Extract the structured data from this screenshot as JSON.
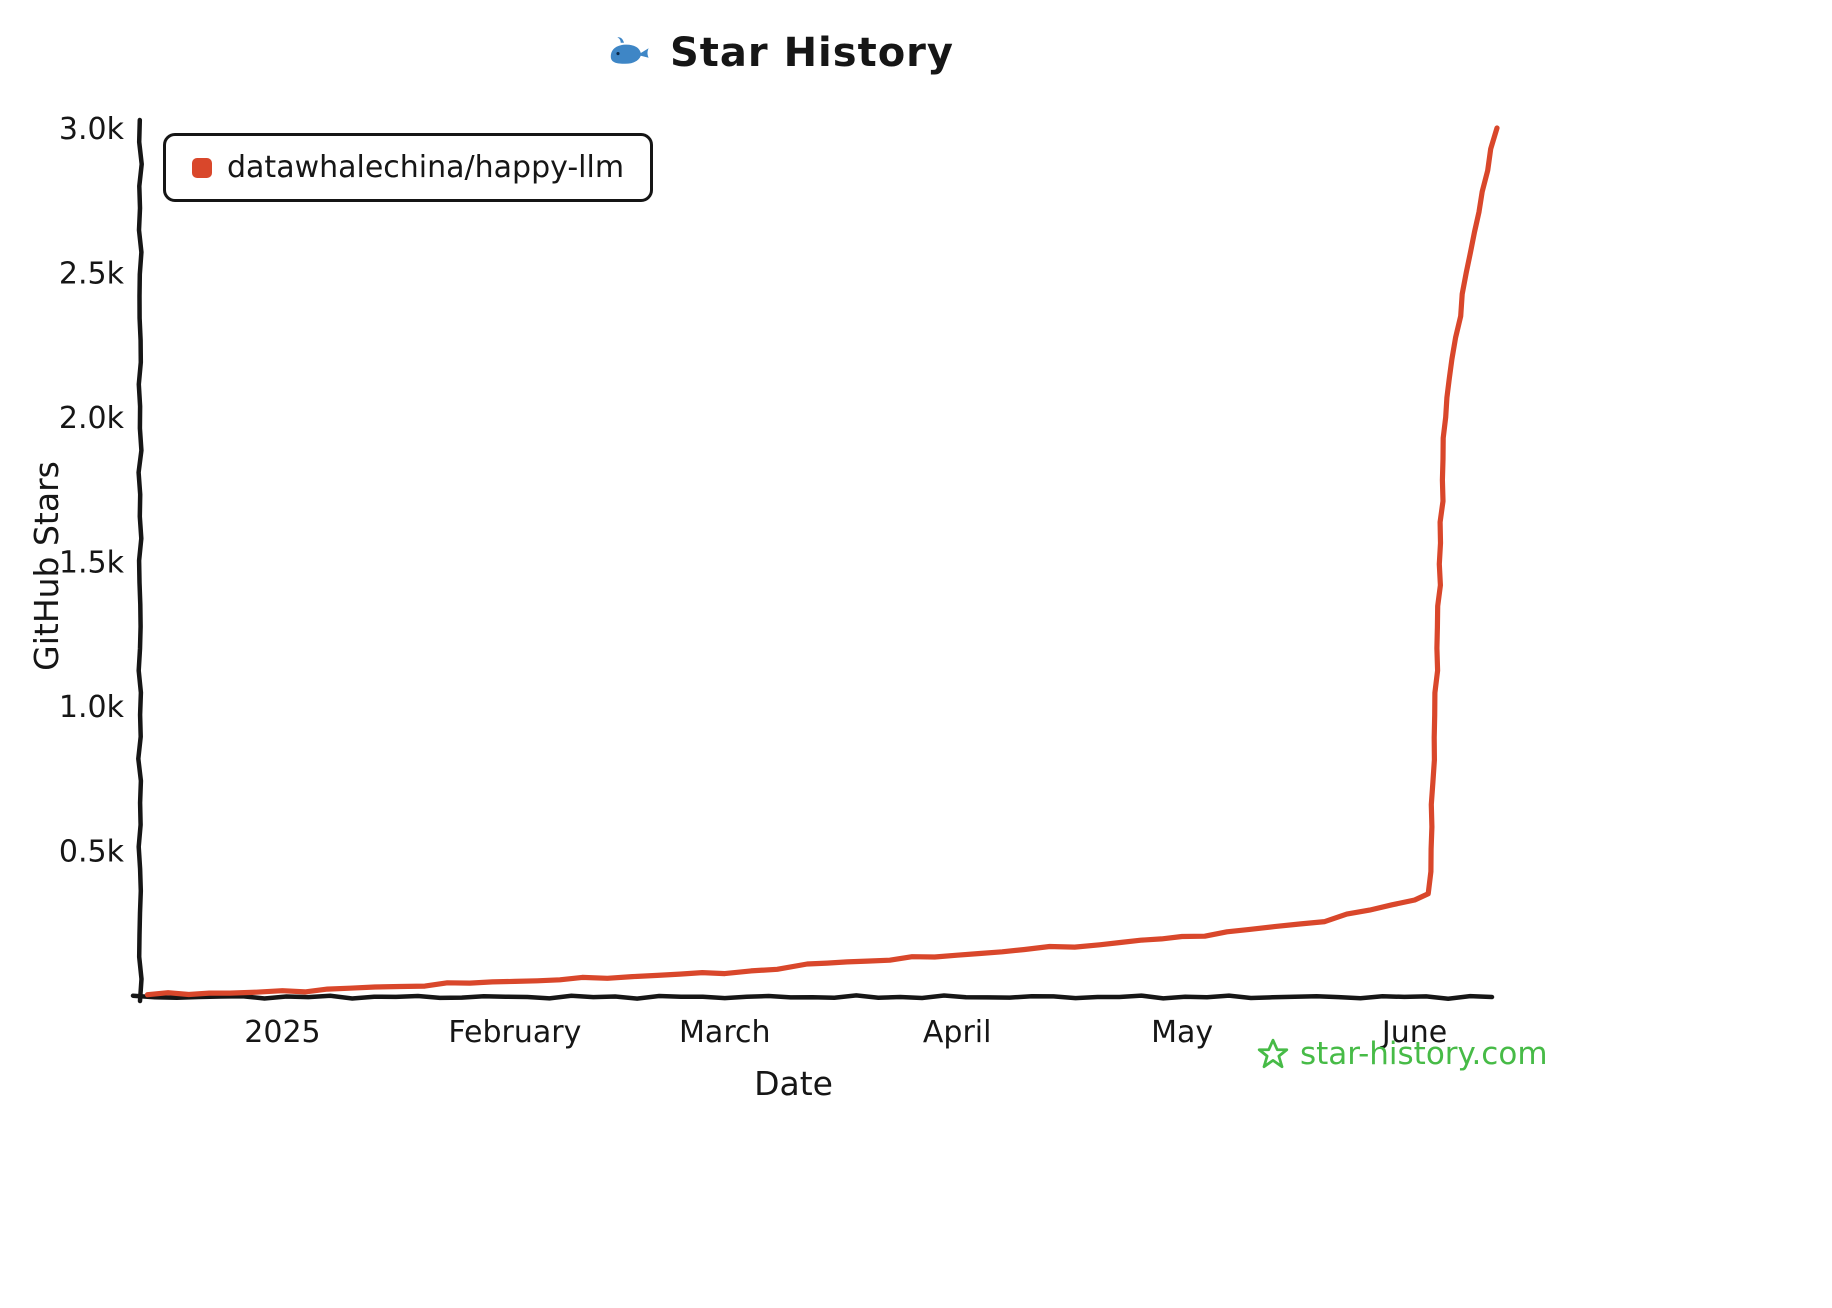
{
  "header": {
    "title": "Star History"
  },
  "legend": {
    "label": "datawhalechina/happy-llm"
  },
  "footer": {
    "text": "star-history.com",
    "color": "#47BB47"
  },
  "chart_data": {
    "type": "line",
    "title": "Star History",
    "xlabel": "Date",
    "ylabel": "GitHub Stars",
    "x_domain": [
      "2024-12-13",
      "2025-06-12"
    ],
    "ylim": [
      0,
      3000
    ],
    "axis_color": "#161616",
    "grid": false,
    "legend_position": "top-left",
    "y_ticks": [
      {
        "value": 500,
        "label": "0.5k"
      },
      {
        "value": 1000,
        "label": "1.0k"
      },
      {
        "value": 1500,
        "label": "1.5k"
      },
      {
        "value": 2000,
        "label": "2.0k"
      },
      {
        "value": 2500,
        "label": "2.5k"
      },
      {
        "value": 3000,
        "label": "3.0k"
      }
    ],
    "x_ticks": [
      {
        "date": "2025-01-01",
        "label": "2025"
      },
      {
        "date": "2025-02-01",
        "label": "February"
      },
      {
        "date": "2025-03-01",
        "label": "March"
      },
      {
        "date": "2025-04-01",
        "label": "April"
      },
      {
        "date": "2025-05-01",
        "label": "May"
      },
      {
        "date": "2025-06-01",
        "label": "June"
      }
    ],
    "series": [
      {
        "name": "datawhalechina/happy-llm",
        "color": "#D9472B",
        "points": [
          [
            "2024-12-14",
            2
          ],
          [
            "2024-12-25",
            8
          ],
          [
            "2025-01-01",
            12
          ],
          [
            "2025-01-10",
            22
          ],
          [
            "2025-01-20",
            35
          ],
          [
            "2025-02-01",
            48
          ],
          [
            "2025-02-10",
            56
          ],
          [
            "2025-02-20",
            68
          ],
          [
            "2025-03-01",
            78
          ],
          [
            "2025-03-08",
            88
          ],
          [
            "2025-03-12",
            105
          ],
          [
            "2025-03-20",
            118
          ],
          [
            "2025-04-01",
            138
          ],
          [
            "2025-04-10",
            158
          ],
          [
            "2025-04-20",
            175
          ],
          [
            "2025-05-01",
            200
          ],
          [
            "2025-05-10",
            225
          ],
          [
            "2025-05-20",
            258
          ],
          [
            "2025-06-01",
            330
          ],
          [
            "2025-06-03",
            350
          ],
          [
            "2025-06-04",
            1200
          ],
          [
            "2025-06-05",
            2000
          ],
          [
            "2025-06-06",
            2200
          ],
          [
            "2025-06-08",
            2500
          ],
          [
            "2025-06-10",
            2780
          ],
          [
            "2025-06-12",
            3000
          ]
        ]
      }
    ]
  }
}
